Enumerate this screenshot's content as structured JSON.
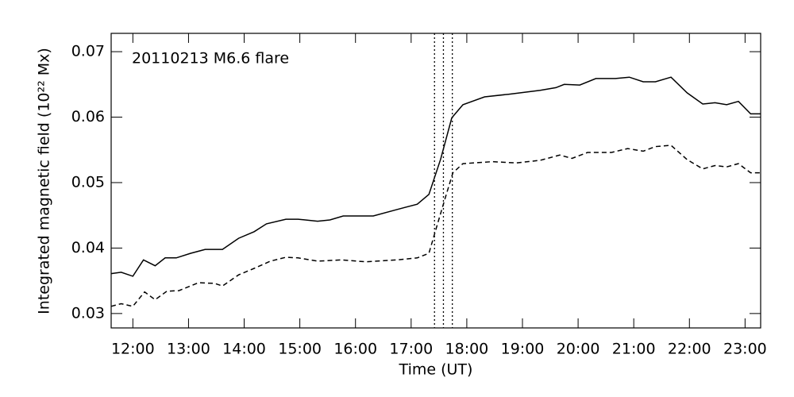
{
  "chart_data": {
    "type": "line",
    "annotation": "20110213 M6.6 flare",
    "x_label": "Time (UT)",
    "y_label": "Integrated magnetic field (10²² Mx)",
    "xlim": [
      11.61,
      23.28
    ],
    "ylim": [
      0.0278,
      0.0728
    ],
    "xticks": [
      {
        "value": 12,
        "label": "12:00"
      },
      {
        "value": 13,
        "label": "13:00"
      },
      {
        "value": 14,
        "label": "14:00"
      },
      {
        "value": 15,
        "label": "15:00"
      },
      {
        "value": 16,
        "label": "16:00"
      },
      {
        "value": 17,
        "label": "17:00"
      },
      {
        "value": 18,
        "label": "18:00"
      },
      {
        "value": 19,
        "label": "19:00"
      },
      {
        "value": 20,
        "label": "20:00"
      },
      {
        "value": 21,
        "label": "21:00"
      },
      {
        "value": 22,
        "label": "22:00"
      },
      {
        "value": 23,
        "label": "23:00"
      }
    ],
    "yticks": [
      0.03,
      0.04,
      0.05,
      0.06,
      0.07
    ],
    "vlines": [
      17.42,
      17.58,
      17.74
    ],
    "vline_style": "dotted",
    "series": [
      {
        "color": "#000000",
        "linestyle": "solid",
        "x": [
          11.61,
          11.79,
          12.0,
          12.19,
          12.4,
          12.58,
          12.78,
          13.04,
          13.3,
          13.61,
          13.9,
          14.18,
          14.4,
          14.75,
          14.97,
          15.32,
          15.54,
          15.78,
          16.32,
          16.75,
          17.11,
          17.32,
          17.53,
          17.73,
          17.93,
          18.32,
          18.75,
          19.32,
          19.6,
          19.75,
          20.03,
          20.32,
          20.67,
          20.92,
          21.17,
          21.39,
          21.67,
          21.96,
          22.24,
          22.46,
          22.67,
          22.88,
          23.1,
          23.28
        ],
        "values": [
          0.0361,
          0.0363,
          0.0357,
          0.0382,
          0.0373,
          0.0385,
          0.0385,
          0.0392,
          0.0398,
          0.0398,
          0.0415,
          0.0425,
          0.0437,
          0.0444,
          0.0444,
          0.0441,
          0.0443,
          0.0449,
          0.0449,
          0.0459,
          0.0467,
          0.0482,
          0.0536,
          0.0599,
          0.0619,
          0.0631,
          0.0635,
          0.0641,
          0.0645,
          0.065,
          0.0649,
          0.0659,
          0.0659,
          0.0661,
          0.0654,
          0.0654,
          0.0661,
          0.0637,
          0.062,
          0.0622,
          0.0619,
          0.0624,
          0.0605,
          0.0605
        ]
      },
      {
        "color": "#000000",
        "linestyle": "dashed",
        "x": [
          11.61,
          11.79,
          12.0,
          12.21,
          12.4,
          12.61,
          12.83,
          13.18,
          13.47,
          13.61,
          13.9,
          14.18,
          14.47,
          14.75,
          14.97,
          15.32,
          15.75,
          16.18,
          16.75,
          17.11,
          17.32,
          17.46,
          17.61,
          17.75,
          17.93,
          18.46,
          18.89,
          19.32,
          19.67,
          19.89,
          20.17,
          20.6,
          20.89,
          21.17,
          21.39,
          21.67,
          21.96,
          22.24,
          22.46,
          22.67,
          22.88,
          23.1,
          23.28
        ],
        "values": [
          0.0311,
          0.0315,
          0.0311,
          0.0333,
          0.0321,
          0.0334,
          0.0335,
          0.0347,
          0.0346,
          0.0342,
          0.0359,
          0.0369,
          0.038,
          0.0386,
          0.0385,
          0.038,
          0.0382,
          0.0379,
          0.0382,
          0.0385,
          0.0392,
          0.0433,
          0.0476,
          0.0515,
          0.0529,
          0.0532,
          0.053,
          0.0534,
          0.0542,
          0.0537,
          0.0546,
          0.0546,
          0.0552,
          0.0548,
          0.0555,
          0.0557,
          0.0535,
          0.0521,
          0.0526,
          0.0524,
          0.0529,
          0.0515,
          0.0515
        ]
      }
    ]
  }
}
